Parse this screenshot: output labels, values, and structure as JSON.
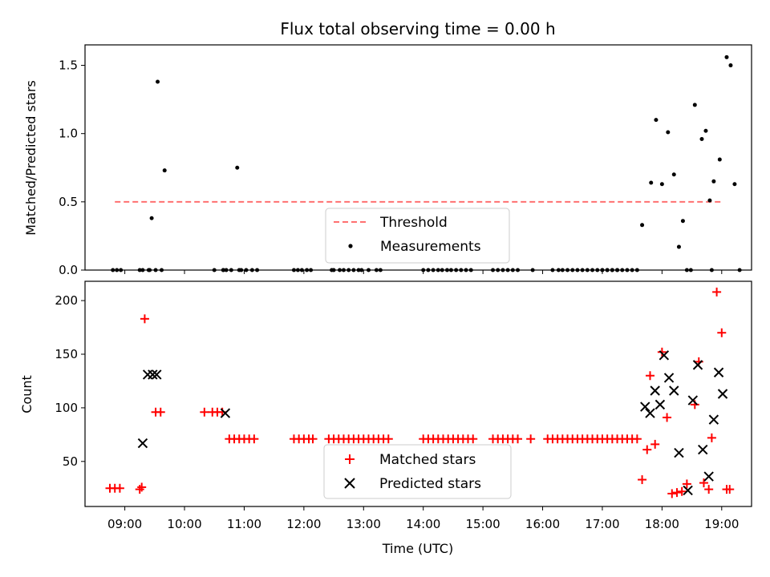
{
  "chart_data": [
    {
      "type": "scatter",
      "title": "Flux total observing time = 0.00 h",
      "xlabel": "",
      "ylabel": "Matched/Predicted stars",
      "xlim": [
        "08:20",
        "19:30"
      ],
      "ylim": [
        0,
        1.65
      ],
      "yticks": [
        0.0,
        0.5,
        1.0,
        1.5
      ],
      "ytick_labels": [
        "0.0",
        "0.5",
        "1.0",
        "1.5"
      ],
      "grid": false,
      "legend_position": "lower-center",
      "threshold": {
        "name": "Threshold",
        "value": 0.5,
        "x_range": [
          "08:50",
          "19:00"
        ],
        "color": "#ff7070",
        "style": "dashed"
      },
      "series": [
        {
          "name": "Measurements",
          "color": "#000000",
          "marker": "dot",
          "x": [
            "08:48",
            "08:52",
            "08:56",
            "09:15",
            "09:18",
            "09:24",
            "09:27",
            "09:33",
            "09:40",
            "10:30",
            "10:39",
            "10:42",
            "10:47",
            "10:53",
            "10:55",
            "10:57",
            "11:02",
            "11:08",
            "11:13",
            "11:50",
            "11:54",
            "11:58",
            "12:03",
            "12:07",
            "12:28",
            "12:30",
            "12:36",
            "12:40",
            "12:45",
            "12:50",
            "12:55",
            "12:58",
            "13:05",
            "13:13",
            "13:17",
            "14:00",
            "14:05",
            "14:10",
            "14:15",
            "14:19",
            "14:24",
            "14:28",
            "14:33",
            "14:38",
            "14:43",
            "14:48",
            "15:10",
            "15:15",
            "15:20",
            "15:25",
            "15:30",
            "15:35",
            "15:50",
            "16:10",
            "16:16",
            "16:20",
            "16:25",
            "16:30",
            "16:35",
            "16:40",
            "16:45",
            "16:50",
            "16:55",
            "17:00",
            "17:05",
            "17:10",
            "17:15",
            "17:20",
            "17:25",
            "17:30",
            "17:35",
            "17:00",
            "17:05",
            "17:10",
            "17:15",
            "17:40",
            "17:49",
            "17:54",
            "18:00",
            "18:06",
            "18:12",
            "18:17",
            "18:21",
            "18:29",
            "18:33",
            "18:40",
            "18:44",
            "18:48",
            "18:52",
            "18:58",
            "19:05",
            "19:09",
            "19:13",
            "19:18",
            "09:25",
            "09:31",
            "09:37",
            "10:39",
            "18:25",
            "18:50"
          ],
          "y": [
            0,
            0,
            0,
            0,
            0,
            0,
            0.38,
            1.38,
            0.73,
            0,
            0,
            0,
            0,
            0.75,
            0,
            0,
            0,
            0,
            0,
            0,
            0,
            0,
            0,
            0,
            0,
            0,
            0,
            0,
            0,
            0,
            0,
            0,
            0,
            0,
            0,
            0,
            0,
            0,
            0,
            0,
            0,
            0,
            0,
            0,
            0,
            0,
            0,
            0,
            0,
            0,
            0,
            0,
            0,
            0,
            0,
            0,
            0,
            0,
            0,
            0,
            0,
            0,
            0,
            0,
            0,
            0,
            0,
            0,
            0,
            0,
            0,
            0,
            0,
            0,
            0,
            0.33,
            0.64,
            1.1,
            0.63,
            1.01,
            0.7,
            0.17,
            0.36,
            0,
            1.21,
            0.96,
            1.02,
            0.51,
            0.65,
            0.81,
            1.56,
            1.5,
            0.63,
            0,
            0,
            0,
            0,
            0,
            0,
            0
          ]
        }
      ]
    },
    {
      "type": "scatter",
      "title": "",
      "xlabel": "Time (UTC)",
      "ylabel": "Count",
      "xlim": [
        "08:20",
        "19:30"
      ],
      "ylim": [
        8,
        218
      ],
      "xticks": [
        "09:00",
        "10:00",
        "11:00",
        "12:00",
        "13:00",
        "14:00",
        "15:00",
        "16:00",
        "17:00",
        "18:00",
        "19:00"
      ],
      "yticks": [
        50,
        100,
        150,
        200
      ],
      "ytick_labels": [
        "50",
        "100",
        "150",
        "200"
      ],
      "grid": false,
      "legend_position": "lower-center",
      "series": [
        {
          "name": "Matched stars",
          "color": "#ff0000",
          "marker": "plus",
          "x": [
            "08:45",
            "08:50",
            "08:55",
            "09:15",
            "09:17",
            "09:20",
            "09:31",
            "09:36",
            "10:20",
            "10:28",
            "10:33",
            "10:38",
            "10:45",
            "10:50",
            "10:55",
            "11:00",
            "11:05",
            "11:10",
            "11:50",
            "11:55",
            "12:00",
            "12:05",
            "12:09",
            "12:25",
            "12:30",
            "12:35",
            "12:40",
            "12:45",
            "12:50",
            "12:55",
            "13:00",
            "13:05",
            "13:10",
            "13:15",
            "13:20",
            "13:25",
            "14:00",
            "14:05",
            "14:10",
            "14:15",
            "14:20",
            "14:25",
            "14:30",
            "14:35",
            "14:40",
            "14:45",
            "14:50",
            "15:10",
            "15:15",
            "15:20",
            "15:25",
            "15:30",
            "15:35",
            "15:48",
            "16:05",
            "16:10",
            "16:15",
            "16:20",
            "16:25",
            "16:30",
            "16:35",
            "16:40",
            "16:45",
            "16:50",
            "16:55",
            "17:00",
            "17:05",
            "17:10",
            "17:15",
            "17:20",
            "17:25",
            "17:30",
            "17:35",
            "17:40",
            "17:45",
            "17:48",
            "17:53",
            "18:00",
            "18:05",
            "18:10",
            "18:15",
            "18:20",
            "18:25",
            "18:33",
            "18:37",
            "18:42",
            "18:47",
            "18:50",
            "18:55",
            "19:00",
            "19:05",
            "19:08"
          ],
          "y": [
            25,
            25,
            25,
            24,
            26,
            183,
            96,
            96,
            96,
            96,
            96,
            96,
            71,
            71,
            71,
            71,
            71,
            71,
            71,
            71,
            71,
            71,
            71,
            71,
            71,
            71,
            71,
            71,
            71,
            71,
            71,
            71,
            71,
            71,
            71,
            71,
            71,
            71,
            71,
            71,
            71,
            71,
            71,
            71,
            71,
            71,
            71,
            71,
            71,
            71,
            71,
            71,
            71,
            71,
            71,
            71,
            71,
            71,
            71,
            71,
            71,
            71,
            71,
            71,
            71,
            71,
            71,
            71,
            71,
            71,
            71,
            71,
            71,
            33,
            61,
            130,
            66,
            152,
            91,
            20,
            21,
            22,
            29,
            103,
            143,
            30,
            24,
            72,
            208,
            170,
            24,
            24
          ]
        },
        {
          "name": "Predicted stars",
          "color": "#000000",
          "marker": "x",
          "x": [
            "09:18",
            "09:23",
            "09:28",
            "09:32",
            "10:41",
            "17:43",
            "17:48",
            "17:53",
            "17:58",
            "18:02",
            "18:07",
            "18:12",
            "18:17",
            "18:26",
            "18:31",
            "18:36",
            "18:41",
            "18:47",
            "18:52",
            "18:57",
            "19:01"
          ],
          "y": [
            67,
            131,
            131,
            131,
            95,
            101,
            95,
            116,
            103,
            149,
            128,
            116,
            58,
            23,
            107,
            140,
            61,
            36,
            89,
            133,
            113
          ]
        }
      ]
    }
  ]
}
